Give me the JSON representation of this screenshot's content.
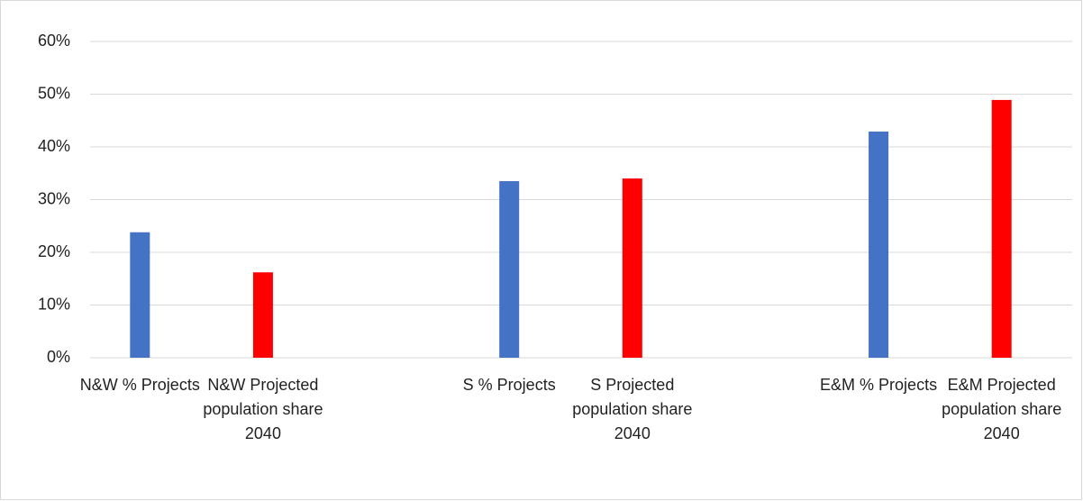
{
  "chart_data": {
    "type": "bar",
    "categories": [
      "N&W % Projects",
      "N&W Projected population share 2040",
      null,
      "S % Projects",
      "S Projected population share 2040",
      null,
      "E&M % Projects",
      "E&M Projected population share 2040"
    ],
    "values": [
      23.8,
      16.2,
      null,
      33.5,
      34.0,
      null,
      42.9,
      48.9
    ],
    "colors": [
      "#4472c4",
      "#ff0000",
      null,
      "#4472c4",
      "#ff0000",
      null,
      "#4472c4",
      "#ff0000"
    ],
    "ylim": [
      0,
      60
    ],
    "yticks": [
      {
        "value": 0,
        "label": "0%"
      },
      {
        "value": 10,
        "label": "10%"
      },
      {
        "value": 20,
        "label": "20%"
      },
      {
        "value": 30,
        "label": "30%"
      },
      {
        "value": 40,
        "label": "40%"
      },
      {
        "value": 50,
        "label": "50%"
      },
      {
        "value": 60,
        "label": "60%"
      }
    ],
    "grid": true
  }
}
